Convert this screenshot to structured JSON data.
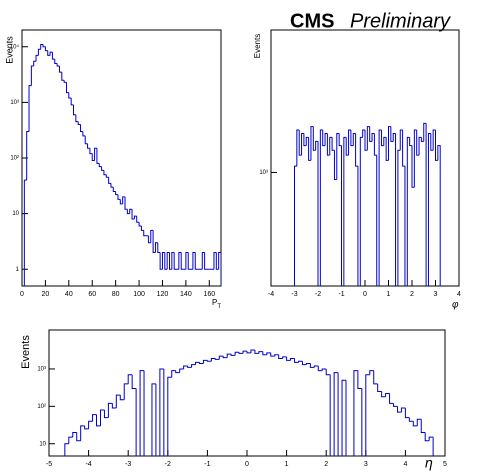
{
  "banner": {
    "title": "CMS",
    "subtitle": "Preliminary"
  },
  "chart_data": [
    {
      "type": "histogram",
      "ylabel": "Events",
      "xlabel": "P",
      "xlabel_subscript": "T",
      "color": "#0000cc",
      "log_y": true,
      "grid": false,
      "bins": [
        0,
        2,
        4,
        6,
        8,
        10,
        12,
        14,
        16,
        18,
        20,
        22,
        24,
        26,
        28,
        30,
        32,
        34,
        36,
        38,
        40,
        42,
        44,
        46,
        48,
        50,
        52,
        54,
        56,
        58,
        60,
        62,
        64,
        66,
        68,
        70,
        72,
        74,
        76,
        78,
        80,
        82,
        84,
        86,
        88,
        90,
        92,
        94,
        96,
        98,
        100,
        102,
        104,
        106,
        108,
        110,
        112,
        114,
        116,
        118,
        120,
        122,
        124,
        126,
        128,
        130,
        132,
        134,
        136,
        138,
        140,
        142,
        144,
        146,
        148,
        150,
        152,
        154,
        156,
        158,
        160,
        162,
        164,
        166,
        168,
        170
      ],
      "values": [
        0,
        40,
        300,
        2000,
        4500,
        5500,
        7000,
        9000,
        11000,
        10000,
        8500,
        7000,
        8000,
        6000,
        5000,
        4500,
        3500,
        2500,
        2300,
        1500,
        1200,
        900,
        600,
        450,
        400,
        300,
        250,
        180,
        150,
        120,
        90,
        150,
        80,
        70,
        60,
        50,
        45,
        35,
        30,
        25,
        22,
        18,
        15,
        20,
        12,
        10,
        12,
        8,
        9,
        7,
        6,
        5,
        4,
        4,
        3,
        5,
        2,
        3,
        2,
        1,
        2,
        1,
        2,
        1,
        2,
        1,
        1,
        2,
        1,
        1,
        2,
        1,
        1,
        2,
        1,
        1,
        1,
        2,
        1,
        1,
        1,
        1,
        2,
        1,
        2
      ],
      "xlim": [
        0,
        170
      ],
      "xticks": [
        0,
        20,
        40,
        60,
        80,
        100,
        120,
        140,
        160
      ],
      "ylim": [
        0.5,
        20000
      ],
      "yticks": [
        1,
        10,
        {
          "value": 100,
          "label": "10²"
        },
        {
          "value": 1000,
          "label": "10³"
        },
        {
          "value": 10000,
          "label": "10⁴"
        }
      ]
    },
    {
      "type": "histogram",
      "ylabel": "Events",
      "xlabel": "φ",
      "color": "#0000cc",
      "log_y": true,
      "grid": false,
      "bins": [
        -3.2,
        -3.1,
        -3,
        -2.9,
        -2.8,
        -2.7,
        -2.6,
        -2.5,
        -2.4,
        -2.3,
        -2.2,
        -2.1,
        -2,
        -1.9,
        -1.8,
        -1.7,
        -1.6,
        -1.5,
        -1.4,
        -1.3,
        -1.2,
        -1.1,
        -1,
        -0.9,
        -0.8,
        -0.7,
        -0.6,
        -0.5,
        -0.4,
        -0.3,
        -0.2,
        -0.1,
        0,
        0.1,
        0.2,
        0.3,
        0.4,
        0.5,
        0.6,
        0.7,
        0.8,
        0.9,
        1,
        1.1,
        1.2,
        1.3,
        1.4,
        1.5,
        1.6,
        1.7,
        1.8,
        1.9,
        2,
        2.1,
        2.2,
        2.3,
        2.4,
        2.5,
        2.6,
        2.7,
        2.8,
        2.9,
        3,
        3.1,
        3.2
      ],
      "values": [
        0,
        0,
        1100,
        1900,
        1300,
        1800,
        1500,
        1700,
        1200,
        2000,
        1400,
        1600,
        0,
        1900,
        1500,
        1800,
        1300,
        1700,
        1400,
        900,
        1800,
        1500,
        0,
        1700,
        1300,
        1900,
        1500,
        1800,
        1100,
        0,
        1700,
        1900,
        1400,
        2000,
        1600,
        1800,
        1300,
        0,
        1900,
        1500,
        1700,
        1200,
        2000,
        1600,
        1800,
        0,
        1400,
        1900,
        1100,
        0,
        1700,
        1500,
        800,
        1900,
        1300,
        1700,
        1600,
        2100,
        0,
        1800,
        1400,
        1900,
        1200,
        1500
      ],
      "xlim": [
        -4,
        4
      ],
      "xticks": [
        -4,
        -3,
        -2,
        -1,
        0,
        1,
        2,
        3,
        4
      ],
      "ylim": [
        180,
        8600
      ],
      "yticks": [
        {
          "value": 1000,
          "label": "10³"
        }
      ]
    },
    {
      "type": "histogram",
      "ylabel": "Events",
      "xlabel": "η",
      "color": "#0000cc",
      "log_y": true,
      "grid": false,
      "bins": [
        -5,
        -4.9,
        -4.8,
        -4.7,
        -4.6,
        -4.5,
        -4.4,
        -4.3,
        -4.2,
        -4.1,
        -4,
        -3.9,
        -3.8,
        -3.7,
        -3.6,
        -3.5,
        -3.4,
        -3.3,
        -3.2,
        -3.1,
        -3,
        -2.9,
        -2.8,
        -2.7,
        -2.6,
        -2.5,
        -2.4,
        -2.3,
        -2.2,
        -2.1,
        -2,
        -1.9,
        -1.8,
        -1.7,
        -1.6,
        -1.5,
        -1.4,
        -1.3,
        -1.2,
        -1.1,
        -1,
        -0.9,
        -0.8,
        -0.7,
        -0.6,
        -0.5,
        -0.4,
        -0.3,
        -0.2,
        -0.1,
        0,
        0.1,
        0.2,
        0.3,
        0.4,
        0.5,
        0.6,
        0.7,
        0.8,
        0.9,
        1,
        1.1,
        1.2,
        1.3,
        1.4,
        1.5,
        1.6,
        1.7,
        1.8,
        1.9,
        2,
        2.1,
        2.2,
        2.3,
        2.4,
        2.5,
        2.6,
        2.7,
        2.8,
        2.9,
        3,
        3.1,
        3.2,
        3.3,
        3.4,
        3.5,
        3.6,
        3.7,
        3.8,
        3.9,
        4,
        4.1,
        4.2,
        4.3,
        4.4,
        4.5,
        4.6,
        4.7,
        4.8,
        4.9,
        5
      ],
      "values": [
        0,
        0,
        0,
        0,
        10,
        15,
        20,
        12,
        30,
        25,
        40,
        60,
        30,
        80,
        50,
        120,
        90,
        200,
        150,
        400,
        700,
        300,
        0,
        900,
        0,
        0,
        400,
        0,
        1000,
        0,
        600,
        900,
        800,
        1000,
        1200,
        1100,
        1300,
        1500,
        1400,
        1700,
        1600,
        1900,
        1800,
        2200,
        2000,
        2500,
        2300,
        2800,
        2600,
        3000,
        2700,
        3200,
        2600,
        2900,
        2400,
        2700,
        2200,
        2400,
        1900,
        2100,
        1700,
        1900,
        1500,
        1600,
        1300,
        1400,
        1100,
        1200,
        900,
        1000,
        700,
        0,
        800,
        0,
        500,
        0,
        0,
        900,
        300,
        0,
        700,
        900,
        400,
        250,
        180,
        220,
        120,
        100,
        70,
        90,
        50,
        40,
        30,
        45,
        20,
        12,
        15,
        0,
        0,
        0
      ],
      "xlim": [
        -5,
        5
      ],
      "xticks": [
        -5,
        -4,
        -3,
        -2,
        -1,
        0,
        1,
        2,
        3,
        4,
        5
      ],
      "ylim": [
        4.7,
        11000
      ],
      "yticks": [
        10,
        {
          "value": 100,
          "label": "10²"
        },
        {
          "value": 1000,
          "label": "10³"
        }
      ]
    }
  ]
}
